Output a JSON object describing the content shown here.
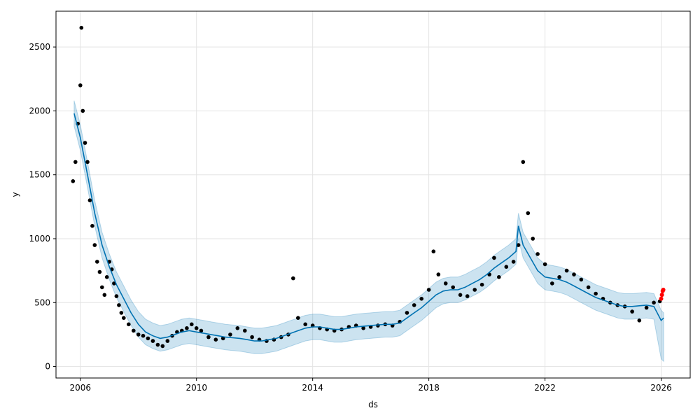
{
  "chart_data": {
    "type": "line",
    "title": "",
    "xlabel": "ds",
    "ylabel": "y",
    "xlim": [
      "2005-03-01",
      "2027-01-01"
    ],
    "ylim": [
      -90,
      2780
    ],
    "x_ticks": [
      "2006",
      "2010",
      "2014",
      "2018",
      "2022",
      "2026"
    ],
    "x_tick_dates": [
      "2006-01-01",
      "2010-01-01",
      "2014-01-01",
      "2018-01-01",
      "2022-01-01",
      "2026-01-01"
    ],
    "y_ticks": [
      0,
      500,
      1000,
      1500,
      2000,
      2500
    ],
    "grid": true,
    "legend": "none",
    "colors": {
      "observed": "#000000",
      "forecast_line": "#0072b2",
      "uncertainty_band": "#0072b2",
      "recent_points": "#ff0000"
    },
    "forecast": {
      "x": [
        "2005-10-15",
        "2006-01-01",
        "2006-04-01",
        "2006-07-01",
        "2006-10-01",
        "2007-01-01",
        "2007-04-01",
        "2007-07-01",
        "2007-10-01",
        "2008-01-01",
        "2008-04-01",
        "2008-07-01",
        "2008-10-01",
        "2009-01-01",
        "2009-04-01",
        "2009-07-01",
        "2009-10-01",
        "2010-01-01",
        "2010-04-01",
        "2010-07-01",
        "2010-10-01",
        "2011-01-01",
        "2011-04-01",
        "2011-07-01",
        "2011-10-01",
        "2012-01-01",
        "2012-04-01",
        "2012-07-01",
        "2012-10-01",
        "2013-01-01",
        "2013-04-01",
        "2013-07-01",
        "2013-10-01",
        "2014-01-01",
        "2014-04-01",
        "2014-07-01",
        "2014-10-01",
        "2015-01-01",
        "2015-04-01",
        "2015-07-01",
        "2015-10-01",
        "2016-01-01",
        "2016-04-01",
        "2016-07-01",
        "2016-10-01",
        "2017-01-01",
        "2017-04-01",
        "2017-07-01",
        "2017-10-01",
        "2018-01-01",
        "2018-04-01",
        "2018-07-01",
        "2018-10-01",
        "2019-01-01",
        "2019-04-01",
        "2019-07-01",
        "2019-10-01",
        "2020-01-01",
        "2020-04-01",
        "2020-07-01",
        "2020-10-01",
        "2021-01-01",
        "2021-02-01",
        "2021-04-01",
        "2021-07-01",
        "2021-10-01",
        "2022-01-01",
        "2022-04-01",
        "2022-07-01",
        "2022-10-01",
        "2023-01-01",
        "2023-04-01",
        "2023-07-01",
        "2023-10-01",
        "2024-01-01",
        "2024-04-01",
        "2024-07-01",
        "2024-10-01",
        "2025-01-01",
        "2025-04-01",
        "2025-07-01",
        "2025-10-01",
        "2026-01-01",
        "2026-02-01"
      ],
      "yhat": [
        1980,
        1790,
        1500,
        1200,
        950,
        780,
        640,
        530,
        420,
        330,
        270,
        240,
        220,
        230,
        250,
        270,
        280,
        270,
        260,
        250,
        240,
        230,
        225,
        220,
        210,
        200,
        200,
        210,
        220,
        240,
        260,
        280,
        300,
        310,
        310,
        300,
        290,
        290,
        300,
        310,
        315,
        320,
        325,
        330,
        330,
        340,
        380,
        420,
        460,
        510,
        560,
        590,
        600,
        600,
        620,
        650,
        680,
        720,
        770,
        810,
        850,
        900,
        1100,
        950,
        850,
        750,
        700,
        690,
        680,
        660,
        630,
        600,
        570,
        540,
        520,
        500,
        480,
        470,
        470,
        475,
        480,
        470,
        360,
        380
      ],
      "yhat_lower": [
        1880,
        1690,
        1400,
        1100,
        850,
        680,
        540,
        430,
        320,
        230,
        170,
        140,
        120,
        130,
        150,
        170,
        180,
        170,
        160,
        150,
        140,
        130,
        125,
        120,
        110,
        100,
        100,
        110,
        120,
        140,
        160,
        180,
        200,
        210,
        210,
        200,
        190,
        190,
        200,
        210,
        215,
        220,
        225,
        230,
        230,
        240,
        280,
        320,
        360,
        410,
        460,
        490,
        500,
        500,
        520,
        550,
        580,
        620,
        670,
        710,
        750,
        800,
        1000,
        850,
        750,
        650,
        600,
        590,
        580,
        560,
        530,
        500,
        470,
        440,
        420,
        400,
        380,
        370,
        370,
        375,
        380,
        370,
        60,
        40
      ],
      "yhat_upper": [
        2080,
        1890,
        1600,
        1300,
        1050,
        880,
        740,
        630,
        520,
        430,
        370,
        340,
        320,
        330,
        350,
        370,
        380,
        370,
        360,
        350,
        340,
        330,
        325,
        320,
        310,
        300,
        300,
        310,
        320,
        340,
        360,
        380,
        400,
        410,
        410,
        400,
        390,
        390,
        400,
        410,
        415,
        420,
        425,
        430,
        430,
        440,
        480,
        520,
        560,
        610,
        660,
        690,
        700,
        700,
        720,
        750,
        780,
        820,
        870,
        910,
        950,
        1000,
        1200,
        1050,
        950,
        850,
        800,
        790,
        780,
        760,
        730,
        700,
        670,
        640,
        620,
        600,
        580,
        570,
        570,
        575,
        580,
        570,
        440,
        420
      ]
    },
    "observed": {
      "x": [
        "2005-10-01",
        "2005-11-01",
        "2005-12-01",
        "2006-01-01",
        "2006-01-15",
        "2006-02-01",
        "2006-03-01",
        "2006-04-01",
        "2006-05-01",
        "2006-06-01",
        "2006-07-01",
        "2006-08-01",
        "2006-09-01",
        "2006-10-01",
        "2006-11-01",
        "2006-12-01",
        "2007-01-01",
        "2007-02-01",
        "2007-03-01",
        "2007-04-01",
        "2007-05-01",
        "2007-06-01",
        "2007-07-01",
        "2007-09-01",
        "2007-11-01",
        "2008-01-01",
        "2008-03-01",
        "2008-05-01",
        "2008-07-01",
        "2008-09-01",
        "2008-11-01",
        "2009-01-01",
        "2009-03-01",
        "2009-05-01",
        "2009-07-01",
        "2009-09-01",
        "2009-11-01",
        "2010-01-01",
        "2010-03-01",
        "2010-06-01",
        "2010-09-01",
        "2010-12-01",
        "2011-03-01",
        "2011-06-01",
        "2011-09-01",
        "2011-12-01",
        "2012-03-01",
        "2012-06-01",
        "2012-09-01",
        "2012-12-01",
        "2013-03-01",
        "2013-05-01",
        "2013-07-01",
        "2013-10-01",
        "2014-01-01",
        "2014-04-01",
        "2014-07-01",
        "2014-10-01",
        "2015-01-01",
        "2015-04-01",
        "2015-07-01",
        "2015-10-01",
        "2016-01-01",
        "2016-04-01",
        "2016-07-01",
        "2016-10-01",
        "2017-01-01",
        "2017-04-01",
        "2017-07-01",
        "2017-10-01",
        "2018-01-01",
        "2018-03-01",
        "2018-05-01",
        "2018-08-01",
        "2018-11-01",
        "2019-02-01",
        "2019-05-01",
        "2019-08-01",
        "2019-11-01",
        "2020-02-01",
        "2020-04-01",
        "2020-06-01",
        "2020-09-01",
        "2020-12-01",
        "2021-02-01",
        "2021-04-01",
        "2021-06-01",
        "2021-08-01",
        "2021-10-01",
        "2022-01-01",
        "2022-04-01",
        "2022-07-01",
        "2022-10-01",
        "2023-01-01",
        "2023-04-01",
        "2023-07-01",
        "2023-10-01",
        "2024-01-01",
        "2024-04-01",
        "2024-07-01",
        "2024-10-01",
        "2025-01-01",
        "2025-04-01",
        "2025-07-01",
        "2025-10-01",
        "2025-12-15"
      ],
      "y": [
        1450,
        1600,
        1900,
        2200,
        2650,
        2000,
        1750,
        1600,
        1300,
        1100,
        950,
        820,
        740,
        620,
        560,
        700,
        820,
        760,
        650,
        550,
        480,
        420,
        380,
        330,
        280,
        250,
        240,
        220,
        200,
        170,
        160,
        200,
        240,
        270,
        280,
        300,
        330,
        300,
        280,
        230,
        210,
        220,
        250,
        300,
        280,
        230,
        210,
        200,
        210,
        230,
        250,
        690,
        380,
        330,
        320,
        300,
        290,
        280,
        290,
        310,
        320,
        300,
        310,
        320,
        330,
        320,
        350,
        420,
        480,
        530,
        600,
        900,
        720,
        650,
        620,
        560,
        550,
        600,
        640,
        720,
        850,
        700,
        780,
        820,
        950,
        1600,
        1200,
        1000,
        880,
        800,
        650,
        700,
        750,
        720,
        680,
        620,
        570,
        530,
        500,
        480,
        470,
        430,
        360,
        460,
        500,
        510
      ]
    },
    "recent_points": {
      "x": [
        "2026-01-01",
        "2026-01-10",
        "2026-01-20",
        "2026-01-28"
      ],
      "y": [
        530,
        560,
        590,
        600
      ]
    }
  }
}
